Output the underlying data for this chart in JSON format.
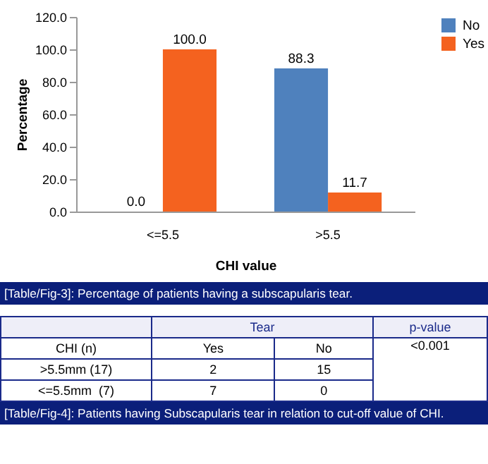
{
  "chart_data": {
    "type": "bar",
    "xlabel": "CHI value",
    "ylabel": "Percentage",
    "categories": [
      "<=5.5",
      ">5.5"
    ],
    "series": [
      {
        "name": "No",
        "color": "#4f81bd",
        "values": [
          0.0,
          88.3
        ]
      },
      {
        "name": "Yes",
        "color": "#f4621f",
        "values": [
          100.0,
          11.7
        ]
      }
    ],
    "ylim": [
      0,
      120
    ],
    "yticks": [
      {
        "value": 0,
        "label": "0.0"
      },
      {
        "value": 20,
        "label": "20.0"
      },
      {
        "value": 40,
        "label": "40.0"
      },
      {
        "value": 60,
        "label": "60.0"
      },
      {
        "value": 80,
        "label": "80.0"
      },
      {
        "value": 100,
        "label": "100.0"
      },
      {
        "value": 120,
        "label": "120.0"
      }
    ],
    "value_labels": [
      [
        "0.0",
        "88.3"
      ],
      [
        "100.0",
        "11.7"
      ]
    ],
    "legend": "right",
    "grid": false,
    "annotations": [
      "[Table/Fig-3]: Percentage of patients having a subscapularis tear.",
      "Tear",
      "p-value",
      "CHI (n)",
      "Yes",
      "No",
      "<0.001",
      ">5.5mm (17)",
      "2",
      "15",
      "<=5.5mm  (7)",
      "7",
      "0",
      "[Table/Fig-4]: Patients having Subscapularis tear in relation to cut-off value of CHI."
    ]
  }
}
